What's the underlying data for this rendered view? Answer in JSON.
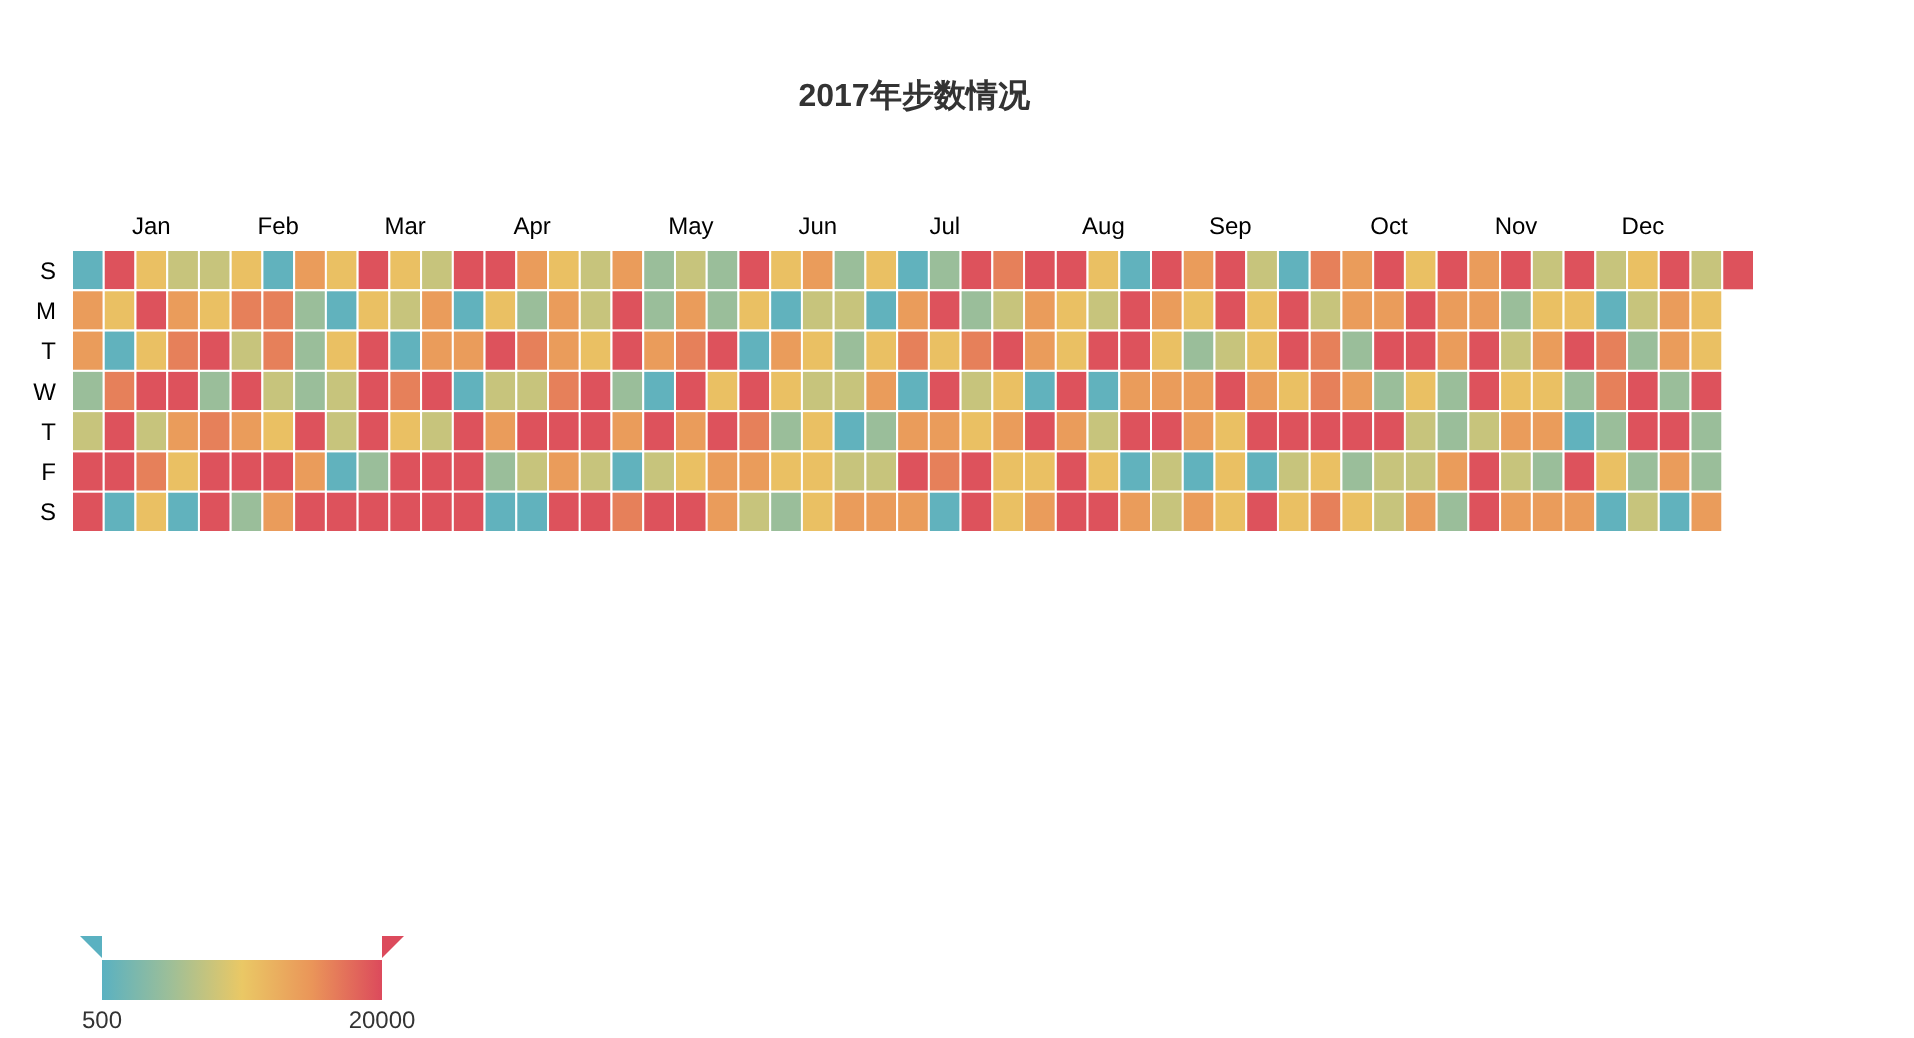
{
  "chart_data": {
    "type": "heatmap",
    "title": "2017年步数情况",
    "categories": [
      null,
      null,
      "Jan",
      null,
      null,
      null,
      "Feb",
      null,
      null,
      null,
      "Mar",
      null,
      null,
      null,
      "Apr",
      null,
      null,
      null,
      null,
      "May",
      null,
      null,
      null,
      "Jun",
      null,
      null,
      null,
      "Jul",
      null,
      null,
      null,
      null,
      "Aug",
      null,
      null,
      null,
      "Sep",
      null,
      null,
      null,
      null,
      "Oct",
      null,
      null,
      null,
      "Nov",
      null,
      null,
      null,
      "Dec",
      null,
      null,
      null
    ],
    "y_categories": [
      "S",
      "M",
      "T",
      "W",
      "T",
      "F",
      "S"
    ],
    "cells": [
      [
        1000,
        19500,
        11000,
        8000,
        8000,
        11000,
        1000,
        14500,
        11000,
        19500,
        11000,
        8000,
        19500,
        19500,
        14500,
        11000,
        8000,
        14500,
        5000,
        8000,
        5000,
        19500,
        11000,
        14500,
        5000,
        11000,
        1000,
        5000,
        19500,
        16500,
        19500,
        19500,
        11000,
        1000,
        19500,
        14500,
        19500,
        8000,
        1000,
        16500,
        14500,
        19500,
        11000,
        19500,
        14500,
        19500,
        8000,
        19500,
        8000,
        11000,
        19500,
        8000,
        19500
      ],
      [
        14500,
        11000,
        19500,
        14500,
        11000,
        16500,
        16500,
        5000,
        1000,
        11000,
        8000,
        14500,
        1000,
        11000,
        5000,
        14500,
        8000,
        19500,
        5000,
        14500,
        5000,
        11000,
        1000,
        8000,
        8000,
        1000,
        14500,
        19500,
        5000,
        8000,
        14500,
        11000,
        8000,
        19500,
        14500,
        11000,
        19500,
        11000,
        19500,
        8000,
        14500,
        14500,
        19500,
        14500,
        14500,
        5000,
        11000,
        11000,
        1000,
        8000,
        14500,
        11000,
        null
      ],
      [
        14500,
        1000,
        11000,
        16500,
        19500,
        8000,
        16500,
        5000,
        11000,
        19500,
        1000,
        14500,
        14500,
        19500,
        16500,
        14500,
        11000,
        19500,
        14500,
        16500,
        19500,
        1000,
        14500,
        11000,
        5000,
        11000,
        16500,
        11000,
        16500,
        19500,
        14500,
        11000,
        19500,
        19500,
        11000,
        5000,
        8000,
        11000,
        19500,
        16500,
        5000,
        19500,
        19500,
        14500,
        19500,
        8000,
        14500,
        19500,
        16500,
        5000,
        14500,
        11000,
        null
      ],
      [
        5000,
        16500,
        19500,
        19500,
        5000,
        19500,
        8000,
        5000,
        8000,
        19500,
        16500,
        19500,
        1000,
        8000,
        8000,
        16500,
        19500,
        5000,
        1000,
        19500,
        11000,
        19500,
        11000,
        8000,
        8000,
        14500,
        1000,
        19500,
        8000,
        11000,
        1000,
        19500,
        1000,
        14500,
        14500,
        14500,
        19500,
        14500,
        11000,
        16500,
        14500,
        5000,
        11000,
        5000,
        19500,
        11000,
        11000,
        5000,
        16500,
        19500,
        5000,
        19500,
        null
      ],
      [
        8000,
        19500,
        8000,
        14500,
        16500,
        14500,
        11000,
        19500,
        8000,
        19500,
        11000,
        8000,
        19500,
        14500,
        19500,
        19500,
        19500,
        14500,
        19500,
        14500,
        19500,
        16500,
        5000,
        11000,
        1000,
        5000,
        14500,
        14500,
        11000,
        14500,
        19500,
        14500,
        8000,
        19500,
        19500,
        14500,
        11000,
        19500,
        19500,
        19500,
        19500,
        19500,
        8000,
        5000,
        8000,
        14500,
        14500,
        1000,
        5000,
        19500,
        19500,
        5000,
        null
      ],
      [
        19500,
        19500,
        16500,
        11000,
        19500,
        19500,
        19500,
        14500,
        1000,
        5000,
        19500,
        19500,
        19500,
        5000,
        8000,
        14500,
        8000,
        1000,
        8000,
        11000,
        14500,
        14500,
        11000,
        11000,
        8000,
        8000,
        19500,
        16500,
        19500,
        11000,
        11000,
        19500,
        11000,
        1000,
        8000,
        1000,
        11000,
        1000,
        8000,
        11000,
        5000,
        8000,
        8000,
        14500,
        19500,
        8000,
        5000,
        19500,
        11000,
        5000,
        14500,
        5000,
        null
      ],
      [
        19500,
        1000,
        11000,
        1000,
        19500,
        5000,
        14500,
        19500,
        19500,
        19500,
        19500,
        19500,
        19500,
        1000,
        1000,
        19500,
        19500,
        16500,
        19500,
        19500,
        14500,
        8000,
        5000,
        11000,
        14500,
        14500,
        14500,
        1000,
        19500,
        11000,
        14500,
        19500,
        19500,
        14500,
        8000,
        14500,
        11000,
        19500,
        11000,
        16500,
        11000,
        8000,
        14500,
        5000,
        19500,
        14500,
        14500,
        14500,
        1000,
        8000,
        1000,
        14500,
        null
      ]
    ],
    "clim": [
      500,
      20000
    ],
    "cticks": [
      500,
      20000
    ]
  }
}
